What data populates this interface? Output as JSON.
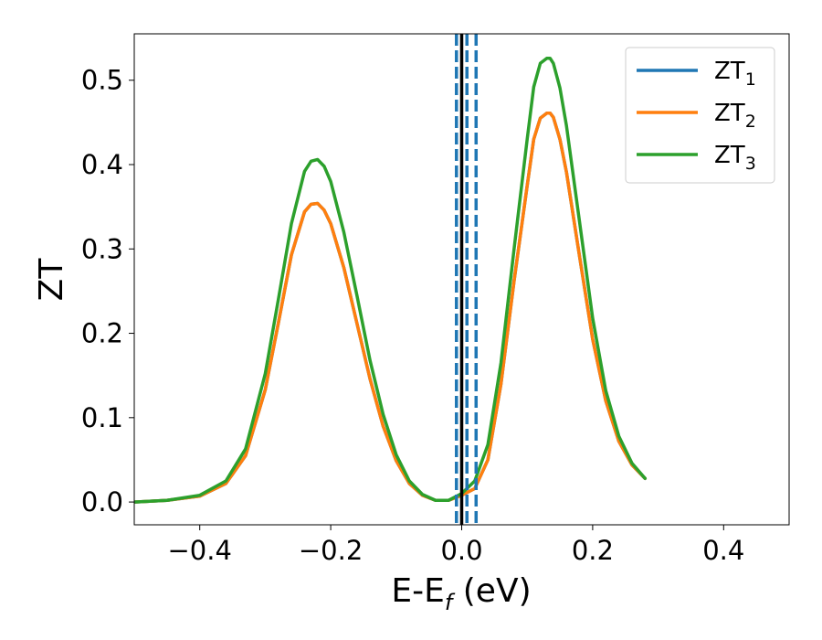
{
  "chart_data": {
    "type": "line",
    "title": "",
    "xlabel": {
      "main": "E-E",
      "sub": "f",
      "tail": " (eV)"
    },
    "ylabel": "ZT",
    "xlim": [
      -0.5,
      0.5
    ],
    "ylim": [
      -0.027,
      0.555
    ],
    "grid": false,
    "legend_position": "top-right",
    "x_ticks": [
      -0.4,
      -0.2,
      0.0,
      0.2,
      0.4
    ],
    "x_tick_labels": [
      "−0.4",
      "−0.2",
      "0.0",
      "0.2",
      "0.4"
    ],
    "y_ticks": [
      0.0,
      0.1,
      0.2,
      0.3,
      0.4,
      0.5
    ],
    "y_tick_labels": [
      "0.0",
      "0.1",
      "0.2",
      "0.3",
      "0.4",
      "0.5"
    ],
    "vertical_lines": [
      {
        "x": -0.008,
        "style": "dashed",
        "color": "#1f77b4"
      },
      {
        "x": 0.008,
        "style": "dashed",
        "color": "#1f77b4"
      },
      {
        "x": 0.022,
        "style": "dashed",
        "color": "#1f77b4"
      },
      {
        "x": 0.0,
        "style": "solid",
        "color": "#000000"
      }
    ],
    "x": [
      -0.5,
      -0.45,
      -0.4,
      -0.36,
      -0.33,
      -0.3,
      -0.28,
      -0.26,
      -0.24,
      -0.23,
      -0.22,
      -0.21,
      -0.2,
      -0.18,
      -0.16,
      -0.14,
      -0.12,
      -0.1,
      -0.08,
      -0.06,
      -0.04,
      -0.02,
      0.0,
      0.02,
      0.04,
      0.06,
      0.08,
      0.1,
      0.11,
      0.12,
      0.13,
      0.135,
      0.14,
      0.15,
      0.16,
      0.18,
      0.2,
      0.22,
      0.24,
      0.26,
      0.28
    ],
    "series": [
      {
        "name": "ZT",
        "subscript": "1",
        "color": "#1f77b4",
        "values": [
          0.0,
          0.002,
          0.007,
          0.022,
          0.055,
          0.133,
          0.212,
          0.293,
          0.344,
          0.353,
          0.354,
          0.346,
          0.33,
          0.278,
          0.212,
          0.146,
          0.09,
          0.049,
          0.022,
          0.008,
          0.002,
          0.002,
          0.008,
          0.016,
          0.05,
          0.14,
          0.262,
          0.375,
          0.43,
          0.455,
          0.461,
          0.461,
          0.456,
          0.43,
          0.391,
          0.291,
          0.193,
          0.12,
          0.072,
          0.044,
          0.028
        ]
      },
      {
        "name": "ZT",
        "subscript": "2",
        "color": "#ff7f0e",
        "values": [
          0.0,
          0.002,
          0.007,
          0.022,
          0.055,
          0.133,
          0.212,
          0.293,
          0.344,
          0.353,
          0.354,
          0.346,
          0.33,
          0.278,
          0.212,
          0.146,
          0.09,
          0.049,
          0.022,
          0.008,
          0.002,
          0.002,
          0.008,
          0.016,
          0.05,
          0.14,
          0.262,
          0.375,
          0.43,
          0.455,
          0.461,
          0.461,
          0.456,
          0.43,
          0.391,
          0.291,
          0.193,
          0.12,
          0.072,
          0.044,
          0.028
        ]
      },
      {
        "name": "ZT",
        "subscript": "3",
        "color": "#2ca02c",
        "values": [
          0.0,
          0.002,
          0.008,
          0.025,
          0.063,
          0.152,
          0.24,
          0.33,
          0.392,
          0.404,
          0.406,
          0.398,
          0.38,
          0.32,
          0.245,
          0.168,
          0.104,
          0.056,
          0.025,
          0.009,
          0.002,
          0.002,
          0.01,
          0.025,
          0.068,
          0.165,
          0.3,
          0.43,
          0.492,
          0.52,
          0.526,
          0.526,
          0.52,
          0.491,
          0.446,
          0.332,
          0.218,
          0.132,
          0.078,
          0.046,
          0.028
        ]
      }
    ]
  }
}
